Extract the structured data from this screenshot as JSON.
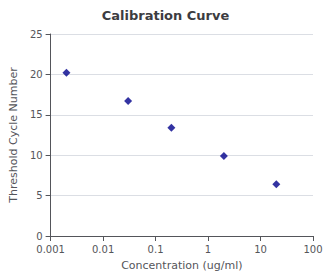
{
  "chart_data": {
    "type": "scatter",
    "title": "Calibration Curve",
    "x_label": "Concentration (ug/ml)",
    "y_label": "Threshold Cycle Number",
    "x": [
      0.002,
      0.03,
      0.2,
      2.0,
      20.0
    ],
    "values": [
      20.2,
      16.7,
      13.4,
      9.9,
      6.4
    ],
    "color": "#00008B",
    "marker": "diamond",
    "log": "x",
    "xlim": [
      0.001,
      100
    ],
    "xticks": [
      0.001,
      0.01,
      0.1,
      1,
      10,
      100
    ],
    "ylim": [
      0,
      25
    ],
    "yticks": [
      0,
      5,
      10,
      15,
      20,
      25
    ],
    "grid": true
  }
}
